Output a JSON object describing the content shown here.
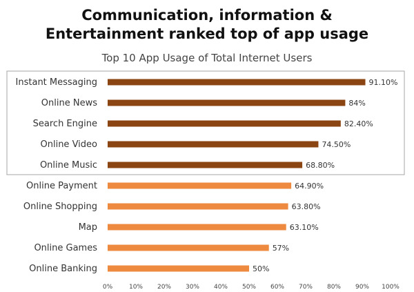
{
  "header": {
    "title_line1": "Communication, information &",
    "title_line2": "Entertainment ranked top of app usage",
    "subtitle": "Top 10 App Usage of Total Internet Users"
  },
  "colors": {
    "highlight": "#8B4513",
    "normal": "#ED8A3F",
    "box": "#A6A6A6"
  },
  "chart_data": {
    "type": "bar",
    "orientation": "horizontal",
    "title": "Top 10 App Usage of Total Internet Users",
    "categories": [
      "Instant Messaging",
      "Online News",
      "Search Engine",
      "Online Video",
      "Online Music",
      "Online Payment",
      "Online Shopping",
      "Map",
      "Online Games",
      "Online Banking"
    ],
    "values": [
      91.1,
      84,
      82.4,
      74.5,
      68.8,
      64.9,
      63.8,
      63.1,
      57,
      50
    ],
    "value_labels": [
      "91.10%",
      "84%",
      "82.40%",
      "74.50%",
      "68.80%",
      "64.90%",
      "63.80%",
      "63.10%",
      "57%",
      "50%"
    ],
    "highlighted_count": 5,
    "xlim": [
      0,
      100
    ],
    "x_ticks": [
      "0%",
      "10%",
      "20%",
      "30%",
      "40%",
      "50%",
      "60%",
      "70%",
      "80%",
      "90%",
      "100%"
    ],
    "grid": false,
    "legend": "none"
  }
}
